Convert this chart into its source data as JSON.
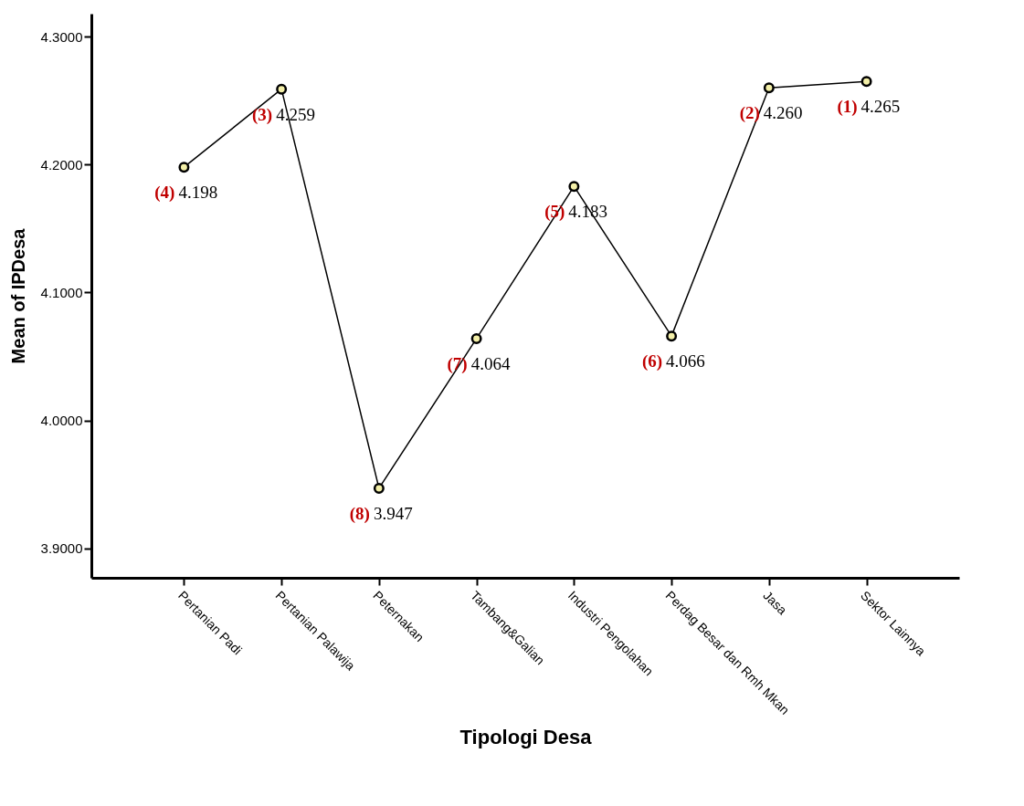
{
  "chart_data": {
    "type": "line",
    "xlabel": "Tipologi Desa",
    "ylabel": "Mean of IPDesa",
    "categories": [
      "Pertanian Padi",
      "Pertanian Palawija",
      "Peternakan",
      "Tambang&Galian",
      "Industri Pengolahan",
      "Perdag Besar dan Rmh Mkan",
      "Jasa",
      "Sektor Lainnya"
    ],
    "series": [
      {
        "color": "#000000",
        "values": [
          4.198,
          4.259,
          3.947,
          4.064,
          4.183,
          4.066,
          4.26,
          4.265
        ],
        "value_labels": [
          "4.198",
          "4.259",
          "3.947",
          "4.064",
          "4.183",
          "4.066",
          "4.260",
          "4.265"
        ]
      }
    ],
    "ylim": [
      3.877,
      4.318
    ],
    "yticks": [
      {
        "value": 3.9,
        "label": "3.9000"
      },
      {
        "value": 4.0,
        "label": "4.0000"
      },
      {
        "value": 4.1,
        "label": "4.1000"
      },
      {
        "value": 4.2,
        "label": "4.2000"
      },
      {
        "value": 4.3,
        "label": "4.3000"
      }
    ],
    "annotations": [
      {
        "text": "(4)",
        "x": "Pertanian Padi",
        "y": 4.198
      },
      {
        "text": "(3)",
        "x": "Pertanian Palawija",
        "y": 4.259
      },
      {
        "text": "(8)",
        "x": "Peternakan",
        "y": 3.947
      },
      {
        "text": "(7)",
        "x": "Tambang&Galian",
        "y": 4.064
      },
      {
        "text": "(5)",
        "x": "Industri Pengolahan",
        "y": 4.183
      },
      {
        "text": "(6)",
        "x": "Perdag Besar dan Rmh Mkan",
        "y": 4.066
      },
      {
        "text": "(2)",
        "x": "Jasa",
        "y": 4.26
      },
      {
        "text": "(1)",
        "x": "Sektor Lainnya",
        "y": 4.265
      }
    ],
    "marker": "circle",
    "line_style": "solid",
    "grid": false
  }
}
